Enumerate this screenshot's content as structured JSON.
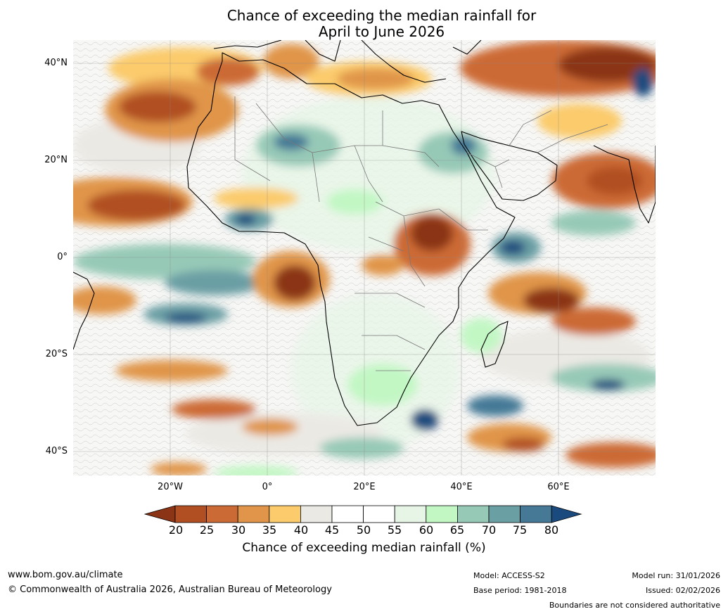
{
  "title": {
    "line1": "Chance of exceeding the median rainfall for",
    "line2": "April to June 2026"
  },
  "map": {
    "region": "Africa",
    "variable": "Chance of exceeding median rainfall",
    "latitude_labels": [
      "40°N",
      "20°N",
      "0°",
      "20°S",
      "40°S"
    ],
    "longitude_labels": [
      "20°W",
      "0°",
      "20°E",
      "40°E",
      "60°E"
    ]
  },
  "colorbar": {
    "title": "Chance of exceeding median rainfall (%)",
    "ticks": [
      "20",
      "25",
      "30",
      "35",
      "40",
      "45",
      "50",
      "55",
      "60",
      "65",
      "70",
      "75",
      "80"
    ],
    "colors": [
      "#8b3416",
      "#b14f23",
      "#cc6a35",
      "#e0954a",
      "#fbcb6c",
      "#ebe9e4",
      "#ffffff",
      "#ffffff",
      "#e6f5e6",
      "#c2f7c4",
      "#97c9b7",
      "#6a9fa4",
      "#457996",
      "#1b4b7e"
    ]
  },
  "footer": {
    "website": "www.bom.gov.au/climate",
    "copyright": "© Commonwealth of Australia 2026, Australian Bureau of Meteorology",
    "model": "Model: ACCESS-S2",
    "base_period": "Base period: 1981-2018",
    "model_run": "Model run: 31/01/2026",
    "issued": "Issued: 02/02/2026",
    "disclaimer": "Boundaries are not considered authoritative"
  }
}
